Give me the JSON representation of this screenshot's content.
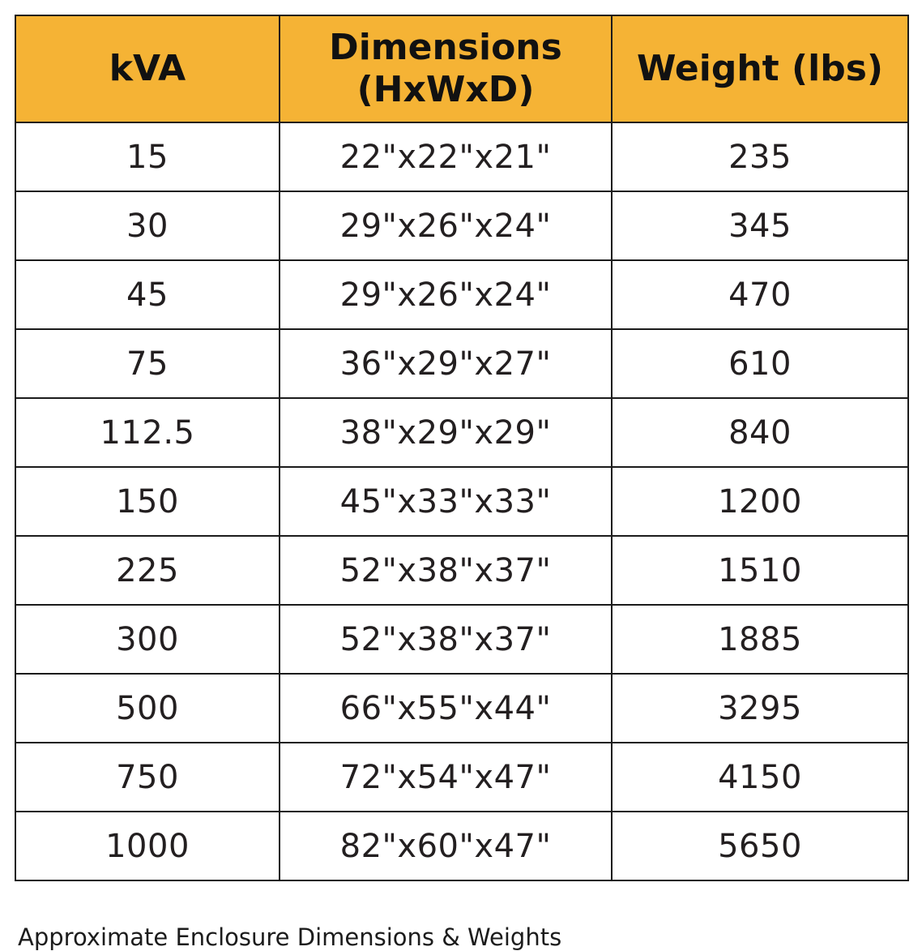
{
  "accent_color": "#F5B335",
  "border_color": "#1b1b1b",
  "caption": "Approximate Enclosure Dimensions & Weights",
  "chart_data": {
    "type": "table",
    "title": "Approximate Enclosure Dimensions & Weights",
    "columns": [
      "kVA",
      "Dimensions\n(HxWxD)",
      "Weight (lbs)"
    ],
    "rows": [
      [
        "15",
        "22\"x22\"x21\"",
        "235"
      ],
      [
        "30",
        "29\"x26\"x24\"",
        "345"
      ],
      [
        "45",
        "29\"x26\"x24\"",
        "470"
      ],
      [
        "75",
        "36\"x29\"x27\"",
        "610"
      ],
      [
        "112.5",
        "38\"x29\"x29\"",
        "840"
      ],
      [
        "150",
        "45\"x33\"x33\"",
        "1200"
      ],
      [
        "225",
        "52\"x38\"x37\"",
        "1510"
      ],
      [
        "300",
        "52\"x38\"x37\"",
        "1885"
      ],
      [
        "500",
        "66\"x55\"x44\"",
        "3295"
      ],
      [
        "750",
        "72\"x54\"x47\"",
        "4150"
      ],
      [
        "1000",
        "82\"x60\"x47\"",
        "5650"
      ]
    ]
  }
}
